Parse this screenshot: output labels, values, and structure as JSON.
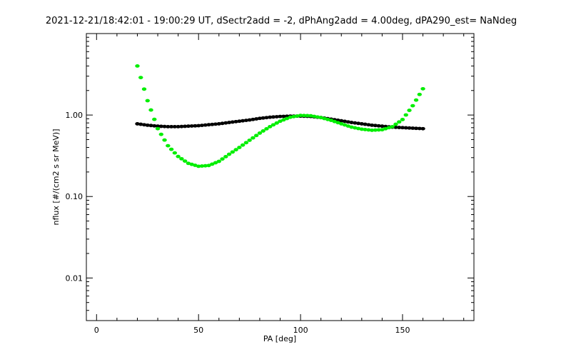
{
  "chart_data": {
    "type": "scatter",
    "title": "2021-12-21/18:42:01 - 19:00:29 UT, dSectr2add = -2, dPhAng2add = 4.00deg, dPA290_est=   NaNdeg",
    "xlabel": "PA [deg]",
    "ylabel": "nflux [#/(cm2 s sr MeV)]",
    "xlim": [
      -5,
      185
    ],
    "ylim": [
      0.003,
      10
    ],
    "yscale": "log",
    "x_ticks": [
      0,
      50,
      100,
      150
    ],
    "x_tick_labels": [
      "0",
      "50",
      "100",
      "150"
    ],
    "y_ticks": [
      0.01,
      0.1,
      1.0
    ],
    "y_tick_labels": [
      "0.01",
      "0.10",
      "1.00"
    ],
    "grid": false,
    "series": [
      {
        "color": "#000000",
        "points": [
          [
            20,
            0.78
          ],
          [
            25,
            0.75
          ],
          [
            30,
            0.73
          ],
          [
            35,
            0.72
          ],
          [
            40,
            0.72
          ],
          [
            45,
            0.73
          ],
          [
            50,
            0.74
          ],
          [
            55,
            0.76
          ],
          [
            60,
            0.78
          ],
          [
            65,
            0.81
          ],
          [
            70,
            0.84
          ],
          [
            75,
            0.87
          ],
          [
            80,
            0.91
          ],
          [
            85,
            0.94
          ],
          [
            90,
            0.96
          ],
          [
            95,
            0.97
          ],
          [
            100,
            0.97
          ],
          [
            105,
            0.96
          ],
          [
            110,
            0.93
          ],
          [
            115,
            0.89
          ],
          [
            120,
            0.85
          ],
          [
            125,
            0.81
          ],
          [
            130,
            0.78
          ],
          [
            135,
            0.75
          ],
          [
            140,
            0.73
          ],
          [
            145,
            0.71
          ],
          [
            150,
            0.7
          ],
          [
            155,
            0.69
          ],
          [
            160,
            0.68
          ]
        ]
      },
      {
        "color": "#00ee00",
        "points": [
          [
            20,
            4.0
          ],
          [
            25,
            1.5
          ],
          [
            30,
            0.68
          ],
          [
            35,
            0.42
          ],
          [
            40,
            0.31
          ],
          [
            45,
            0.255
          ],
          [
            50,
            0.235
          ],
          [
            55,
            0.24
          ],
          [
            60,
            0.27
          ],
          [
            65,
            0.33
          ],
          [
            70,
            0.4
          ],
          [
            75,
            0.49
          ],
          [
            80,
            0.6
          ],
          [
            85,
            0.72
          ],
          [
            90,
            0.84
          ],
          [
            95,
            0.94
          ],
          [
            100,
            0.99
          ],
          [
            105,
            0.98
          ],
          [
            110,
            0.93
          ],
          [
            115,
            0.86
          ],
          [
            120,
            0.78
          ],
          [
            125,
            0.71
          ],
          [
            130,
            0.67
          ],
          [
            135,
            0.65
          ],
          [
            140,
            0.66
          ],
          [
            145,
            0.72
          ],
          [
            150,
            0.88
          ],
          [
            155,
            1.3
          ],
          [
            160,
            2.1
          ]
        ]
      }
    ]
  }
}
